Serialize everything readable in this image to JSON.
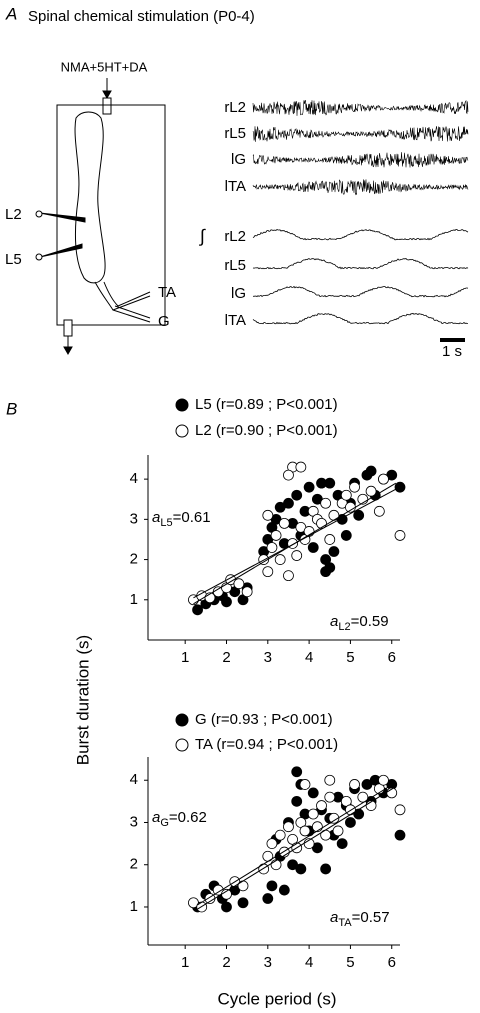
{
  "panel_a": {
    "label": "A",
    "title": "Spinal chemical stimulation (P0-4)",
    "drug": "NMA+5HT+DA",
    "cord_labels": [
      "L2",
      "L5",
      "TA",
      "G"
    ],
    "raw_trace_labels": [
      "rL2",
      "rL5",
      "lG",
      "lTA"
    ],
    "integral_sign": "∫",
    "integrated_trace_labels": [
      "rL2",
      "rL5",
      "lG",
      "lTA"
    ],
    "scale_bar": "1 s"
  },
  "panel_b": {
    "label": "B"
  },
  "chart_data": [
    {
      "type": "scatter",
      "ylabel": "Burst duration (s)",
      "xlim": [
        0.1,
        6.2
      ],
      "ylim": [
        0,
        4.6
      ],
      "xticks": [
        1,
        2,
        3,
        4,
        5,
        6
      ],
      "yticks": [
        1,
        2,
        3,
        4
      ],
      "series": [
        {
          "name": "L5 (r=0.89 ; P<0.001)",
          "color": "#000000",
          "x": [
            1.3,
            1.5,
            1.7,
            1.9,
            2.0,
            2.2,
            2.4,
            2.5,
            2.9,
            3.0,
            3.1,
            3.2,
            3.3,
            3.4,
            3.5,
            3.6,
            3.7,
            3.8,
            3.9,
            4.0,
            4.1,
            4.2,
            4.3,
            4.4,
            4.5,
            4.6,
            4.7,
            4.8,
            4.9,
            5.0,
            5.1,
            5.2,
            5.4,
            5.5,
            5.6,
            5.8,
            6.0,
            6.2,
            4.5,
            4.4
          ],
          "values": [
            0.75,
            0.9,
            1.0,
            1.1,
            0.95,
            1.2,
            1.0,
            1.3,
            2.2,
            2.5,
            2.8,
            3.0,
            3.3,
            2.4,
            3.4,
            2.9,
            3.6,
            2.6,
            3.2,
            3.8,
            2.3,
            3.5,
            3.9,
            1.7,
            1.8,
            2.2,
            3.6,
            3.0,
            2.6,
            3.4,
            3.9,
            3.1,
            4.1,
            4.2,
            3.6,
            4.0,
            4.1,
            3.8,
            3.9,
            2.0
          ]
        },
        {
          "name": "L2 (r=0.90 ; P<0.001)",
          "color": "#ffffff",
          "x": [
            1.2,
            1.4,
            1.6,
            1.8,
            2.0,
            2.1,
            2.3,
            2.5,
            2.9,
            3.0,
            3.0,
            3.1,
            3.2,
            3.3,
            3.4,
            3.5,
            3.6,
            3.7,
            3.8,
            3.9,
            4.0,
            4.1,
            4.2,
            4.3,
            4.4,
            4.5,
            4.6,
            4.8,
            4.9,
            5.0,
            5.1,
            5.3,
            5.5,
            5.7,
            5.8,
            6.2,
            3.6,
            3.8,
            3.5
          ],
          "values": [
            1.0,
            1.1,
            1.05,
            1.2,
            1.3,
            1.5,
            1.4,
            1.2,
            2.0,
            1.7,
            3.1,
            2.3,
            2.6,
            2.0,
            2.9,
            1.6,
            2.4,
            2.1,
            2.8,
            2.5,
            2.7,
            3.2,
            3.0,
            2.9,
            3.4,
            2.5,
            3.1,
            3.4,
            3.6,
            3.3,
            3.8,
            3.5,
            3.7,
            3.2,
            4.0,
            2.6,
            4.3,
            4.3,
            4.1
          ]
        }
      ],
      "fit_lines": [
        {
          "x": [
            1.2,
            6.1
          ],
          "values": [
            0.9,
            3.9
          ]
        },
        {
          "x": [
            1.2,
            6.1
          ],
          "values": [
            1.05,
            3.75
          ]
        }
      ],
      "annotations": [
        {
          "symbol": "a",
          "subscript": "L5",
          "text": "=0.61"
        },
        {
          "symbol": "a",
          "subscript": "L2",
          "text": "=0.59"
        }
      ]
    },
    {
      "type": "scatter",
      "xlabel": "Cycle period (s)",
      "xlim": [
        0.1,
        6.2
      ],
      "ylim": [
        0.1,
        4.55
      ],
      "xticks": [
        1,
        2,
        3,
        4,
        5,
        6
      ],
      "yticks": [
        1,
        2,
        3,
        4
      ],
      "series": [
        {
          "name": "G (r=0.93 ; P<0.001)",
          "color": "#000000",
          "x": [
            1.3,
            1.5,
            1.7,
            1.9,
            2.0,
            2.2,
            2.4,
            3.0,
            3.1,
            3.2,
            3.3,
            3.4,
            3.5,
            3.6,
            3.7,
            3.8,
            3.9,
            4.0,
            4.1,
            4.2,
            4.3,
            4.4,
            4.5,
            4.6,
            4.7,
            4.8,
            4.9,
            5.0,
            5.1,
            5.2,
            5.4,
            5.5,
            5.6,
            5.8,
            6.0,
            6.2,
            3.7,
            3.8
          ],
          "values": [
            1.0,
            1.3,
            1.5,
            1.2,
            1.0,
            1.4,
            1.1,
            1.2,
            1.5,
            2.6,
            2.2,
            1.4,
            3.0,
            2.0,
            3.5,
            1.9,
            3.2,
            2.8,
            3.7,
            2.4,
            3.3,
            1.9,
            3.1,
            2.7,
            3.6,
            2.5,
            3.4,
            3.0,
            3.8,
            3.2,
            3.9,
            3.5,
            4.0,
            3.7,
            3.9,
            2.7,
            4.2,
            3.9
          ]
        },
        {
          "name": "TA (r=0.94 ; P<0.001)",
          "color": "#ffffff",
          "x": [
            1.2,
            1.4,
            1.6,
            1.8,
            2.0,
            2.2,
            2.4,
            2.9,
            3.0,
            3.1,
            3.2,
            3.3,
            3.4,
            3.5,
            3.6,
            3.7,
            3.8,
            3.9,
            4.0,
            4.1,
            4.2,
            4.3,
            4.4,
            4.5,
            4.6,
            4.7,
            4.9,
            5.0,
            5.1,
            5.3,
            5.5,
            5.7,
            5.8,
            6.0,
            6.2,
            4.5,
            3.9
          ],
          "values": [
            1.1,
            1.0,
            1.2,
            1.4,
            1.3,
            1.6,
            1.5,
            1.9,
            2.2,
            2.5,
            2.0,
            2.7,
            2.3,
            2.9,
            2.6,
            2.4,
            3.0,
            2.8,
            2.5,
            3.2,
            2.9,
            3.4,
            2.7,
            3.6,
            3.1,
            2.8,
            3.5,
            3.3,
            3.9,
            3.6,
            3.4,
            3.8,
            4.0,
            3.7,
            3.3,
            4.0,
            3.9
          ]
        }
      ],
      "fit_lines": [
        {
          "x": [
            1.3,
            6.1
          ],
          "values": [
            0.95,
            3.85
          ]
        },
        {
          "x": [
            1.3,
            6.1
          ],
          "values": [
            1.05,
            3.95
          ]
        }
      ],
      "annotations": [
        {
          "symbol": "a",
          "subscript": "G",
          "text": "=0.62"
        },
        {
          "symbol": "a",
          "subscript": "TA",
          "text": "=0.57"
        }
      ]
    }
  ]
}
